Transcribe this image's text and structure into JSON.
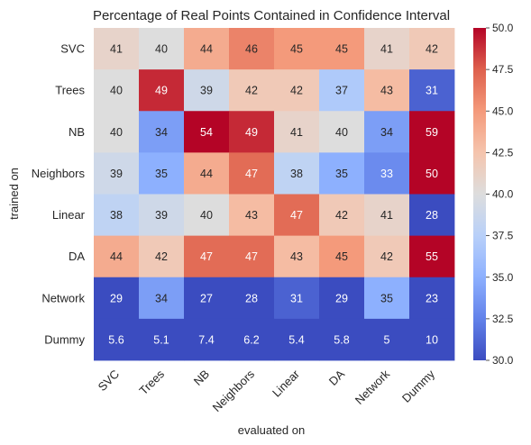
{
  "chart_data": {
    "type": "heatmap",
    "title": "Percentage of Real Points Contained in Confidence Interval",
    "xlabel": "evaluated on",
    "ylabel": "trained on",
    "x_categories": [
      "SVC",
      "Trees",
      "NB",
      "Neighbors",
      "Linear",
      "DA",
      "Network",
      "Dummy"
    ],
    "y_categories": [
      "SVC",
      "Trees",
      "NB",
      "Neighbors",
      "Linear",
      "DA",
      "Network",
      "Dummy"
    ],
    "values": [
      [
        41,
        40,
        44,
        46,
        45,
        45,
        41,
        42
      ],
      [
        40,
        49,
        39,
        42,
        42,
        37,
        43,
        31
      ],
      [
        40,
        34,
        54,
        49,
        41,
        40,
        34,
        59
      ],
      [
        39,
        35,
        44,
        47,
        38,
        35,
        33,
        50
      ],
      [
        38,
        39,
        40,
        43,
        47,
        42,
        41,
        28
      ],
      [
        44,
        42,
        47,
        47,
        43,
        45,
        42,
        55
      ],
      [
        29,
        34,
        27,
        28,
        31,
        29,
        35,
        23
      ],
      [
        5.6,
        5.1,
        7.4,
        6.2,
        5.4,
        5.8,
        5,
        10
      ]
    ],
    "annotations": [
      [
        "41",
        "40",
        "44",
        "46",
        "45",
        "45",
        "41",
        "42"
      ],
      [
        "40",
        "49",
        "39",
        "42",
        "42",
        "37",
        "43",
        "31"
      ],
      [
        "40",
        "34",
        "54",
        "49",
        "41",
        "40",
        "34",
        "59"
      ],
      [
        "39",
        "35",
        "44",
        "47",
        "38",
        "35",
        "33",
        "50"
      ],
      [
        "38",
        "39",
        "40",
        "43",
        "47",
        "42",
        "41",
        "28"
      ],
      [
        "44",
        "42",
        "47",
        "47",
        "43",
        "45",
        "42",
        "55"
      ],
      [
        "29",
        "34",
        "27",
        "28",
        "31",
        "29",
        "35",
        "23"
      ],
      [
        "5.6",
        "5.1",
        "7.4",
        "6.2",
        "5.4",
        "5.8",
        "5",
        "10"
      ]
    ],
    "colormap": "coolwarm",
    "vmin": 30,
    "vmax": 50,
    "colorbar_ticks": [
      30.0,
      32.5,
      35.0,
      37.5,
      40.0,
      42.5,
      45.0,
      47.5,
      50.0
    ],
    "colorbar_tick_labels": [
      "30.0",
      "32.5",
      "35.0",
      "37.5",
      "40.0",
      "42.5",
      "45.0",
      "47.5",
      "50.0"
    ],
    "colorbar_position": "right"
  }
}
